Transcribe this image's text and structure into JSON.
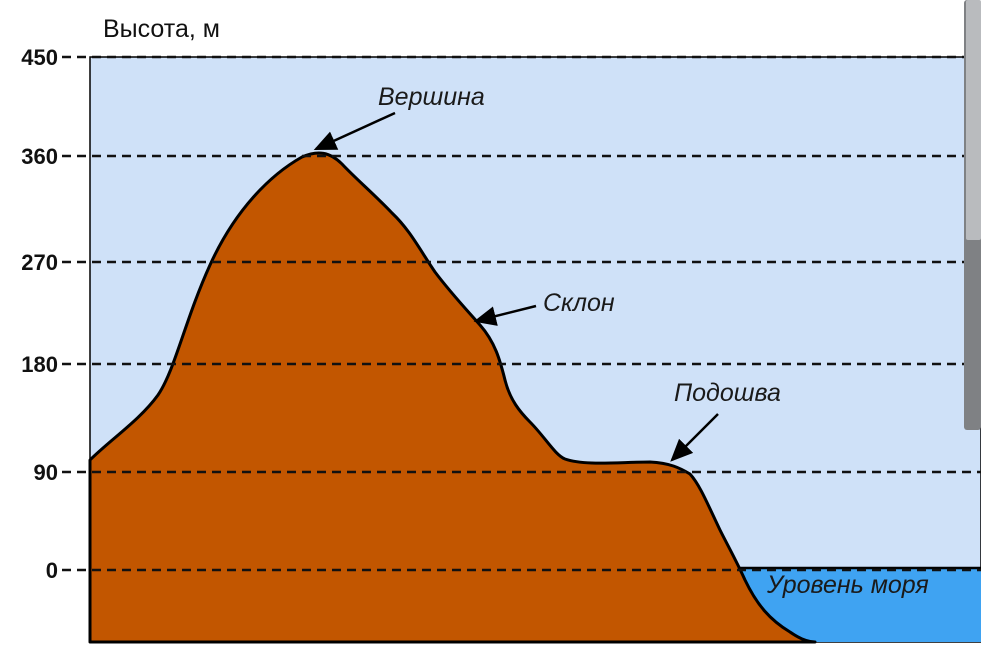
{
  "diagram": {
    "y_axis": {
      "label": "Высота, м",
      "ticks": [
        "450",
        "360",
        "270",
        "180",
        "90",
        "0"
      ]
    },
    "annotations": {
      "summit": "Вершина",
      "slope": "Склон",
      "foot": "Подошва",
      "sea_level": "Уровень моря"
    },
    "colors": {
      "sky": "#cfe1f8",
      "mountain": "#c25600",
      "sea": "#3fa3f2",
      "outline": "#000000"
    }
  }
}
